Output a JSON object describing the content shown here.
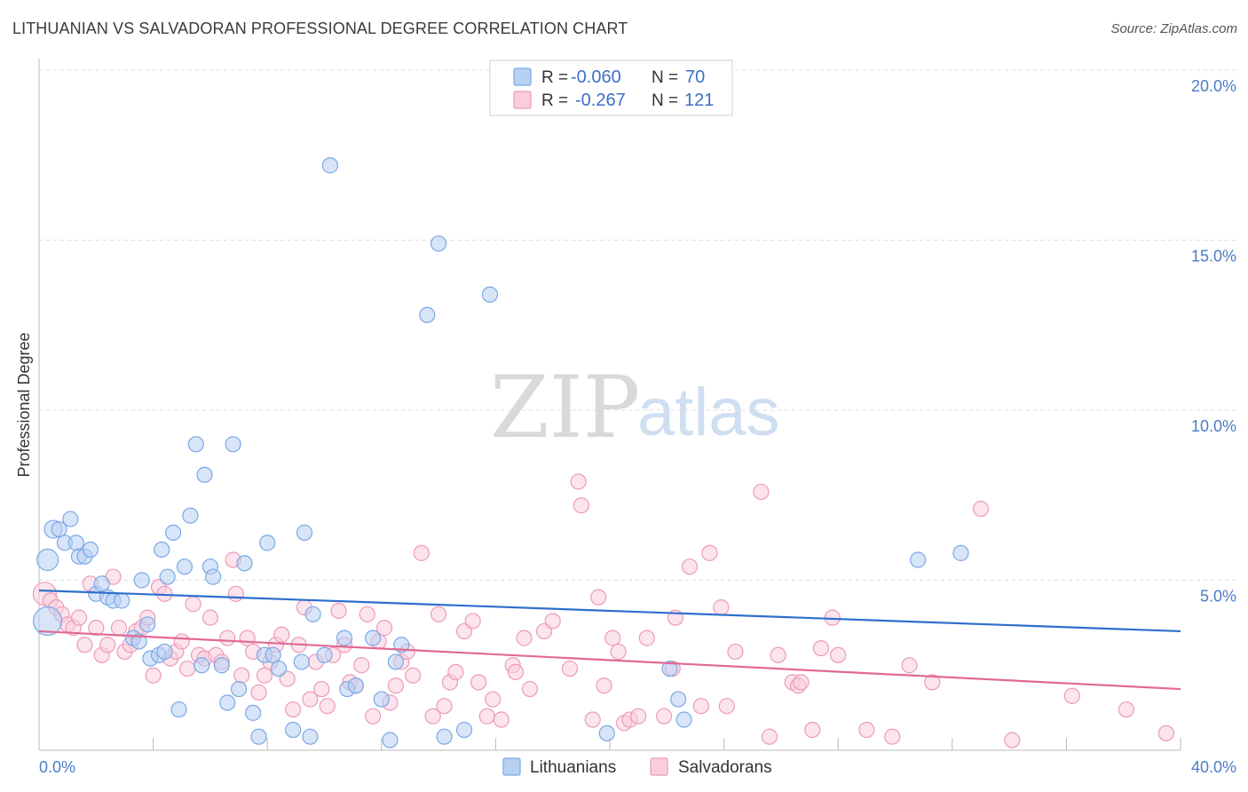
{
  "title": "LITHUANIAN VS SALVADORAN PROFESSIONAL DEGREE CORRELATION CHART",
  "source": "Source: ZipAtlas.com",
  "watermark": {
    "zip": "ZIP",
    "atlas": "atlas"
  },
  "colors": {
    "lithuanians": "#7aa8e6",
    "lithuanians_fill": "#b8d0f2",
    "lithuanians_line": "#2f6fcc",
    "salvadorans": "#ee9ab8",
    "salvadorans_fill": "#f8cedd",
    "salvadorans_line": "#e06a94",
    "grid": "#dcdcdc",
    "tick_label": "#4a7cc7"
  },
  "legend": {
    "rows": [
      {
        "r_label": "R =",
        "r_value": "-0.060",
        "n_label": "N =",
        "n_value": "70"
      },
      {
        "r_label": "R =",
        "r_value": "-0.267",
        "n_label": "N =",
        "n_value": "121"
      }
    ]
  },
  "chart_data": {
    "type": "scatter",
    "title": "LITHUANIAN VS SALVADORAN PROFESSIONAL DEGREE CORRELATION CHART",
    "xlabel": "",
    "ylabel": "Professional Degree",
    "xlim": [
      0,
      40
    ],
    "ylim": [
      0,
      20
    ],
    "x_tick_labels": [
      "0.0%",
      "40.0%"
    ],
    "y_ticks": [
      5,
      10,
      15,
      20
    ],
    "y_tick_labels": [
      "5.0%",
      "10.0%",
      "15.0%",
      "20.0%"
    ],
    "grid": "horizontal dashed",
    "legend_position": "top-center",
    "series": [
      {
        "name": "Lithuanians",
        "r": -0.06,
        "n": 70,
        "trend": [
          [
            0,
            4.7
          ],
          [
            40,
            3.5
          ]
        ],
        "points": [
          [
            0.3,
            3.8
          ],
          [
            0.3,
            5.6
          ],
          [
            0.5,
            6.5
          ],
          [
            0.7,
            6.5
          ],
          [
            0.9,
            6.1
          ],
          [
            1.1,
            6.8
          ],
          [
            1.3,
            6.1
          ],
          [
            1.4,
            5.7
          ],
          [
            1.6,
            5.7
          ],
          [
            1.8,
            5.9
          ],
          [
            2.0,
            4.6
          ],
          [
            2.2,
            4.9
          ],
          [
            2.4,
            4.5
          ],
          [
            2.6,
            4.4
          ],
          [
            2.9,
            4.4
          ],
          [
            3.3,
            3.3
          ],
          [
            3.6,
            5.0
          ],
          [
            3.5,
            3.2
          ],
          [
            3.8,
            3.7
          ],
          [
            3.9,
            2.7
          ],
          [
            4.2,
            2.8
          ],
          [
            4.3,
            5.9
          ],
          [
            4.4,
            2.9
          ],
          [
            4.5,
            5.1
          ],
          [
            4.7,
            6.4
          ],
          [
            4.9,
            1.2
          ],
          [
            5.1,
            5.4
          ],
          [
            5.3,
            6.9
          ],
          [
            5.5,
            9.0
          ],
          [
            5.7,
            2.5
          ],
          [
            5.8,
            8.1
          ],
          [
            6.0,
            5.4
          ],
          [
            6.1,
            5.1
          ],
          [
            6.4,
            2.5
          ],
          [
            6.6,
            1.4
          ],
          [
            6.8,
            9.0
          ],
          [
            7.0,
            1.8
          ],
          [
            7.2,
            5.5
          ],
          [
            7.5,
            1.1
          ],
          [
            7.7,
            0.4
          ],
          [
            7.9,
            2.8
          ],
          [
            8.0,
            6.1
          ],
          [
            8.2,
            2.8
          ],
          [
            8.4,
            2.4
          ],
          [
            8.9,
            0.6
          ],
          [
            9.2,
            2.6
          ],
          [
            9.3,
            6.4
          ],
          [
            9.5,
            0.4
          ],
          [
            9.6,
            4.0
          ],
          [
            10.0,
            2.8
          ],
          [
            10.2,
            17.2
          ],
          [
            10.7,
            3.3
          ],
          [
            10.8,
            1.8
          ],
          [
            11.1,
            1.9
          ],
          [
            11.7,
            3.3
          ],
          [
            12.0,
            1.5
          ],
          [
            12.3,
            0.3
          ],
          [
            12.5,
            2.6
          ],
          [
            12.7,
            3.1
          ],
          [
            13.6,
            12.8
          ],
          [
            14.0,
            14.9
          ],
          [
            14.2,
            0.4
          ],
          [
            14.9,
            0.6
          ],
          [
            15.8,
            13.4
          ],
          [
            19.9,
            0.5
          ],
          [
            22.1,
            2.4
          ],
          [
            22.4,
            1.5
          ],
          [
            22.6,
            0.9
          ],
          [
            30.8,
            5.6
          ],
          [
            32.3,
            5.8
          ]
        ]
      },
      {
        "name": "Salvadorans",
        "r": -0.267,
        "n": 121,
        "trend": [
          [
            0,
            3.5
          ],
          [
            40,
            1.8
          ]
        ],
        "points": [
          [
            0.2,
            4.6
          ],
          [
            0.4,
            4.4
          ],
          [
            0.6,
            4.2
          ],
          [
            0.8,
            4.0
          ],
          [
            1.0,
            3.7
          ],
          [
            1.2,
            3.6
          ],
          [
            1.4,
            3.9
          ],
          [
            1.6,
            3.1
          ],
          [
            1.8,
            4.9
          ],
          [
            2.0,
            3.6
          ],
          [
            2.2,
            2.8
          ],
          [
            2.4,
            3.1
          ],
          [
            2.6,
            5.1
          ],
          [
            2.8,
            3.6
          ],
          [
            3.0,
            2.9
          ],
          [
            3.2,
            3.1
          ],
          [
            3.4,
            3.5
          ],
          [
            3.6,
            3.6
          ],
          [
            3.8,
            3.9
          ],
          [
            4.0,
            2.2
          ],
          [
            4.2,
            4.8
          ],
          [
            4.4,
            4.6
          ],
          [
            4.6,
            2.7
          ],
          [
            4.8,
            2.9
          ],
          [
            5.0,
            3.2
          ],
          [
            5.2,
            2.4
          ],
          [
            5.4,
            4.3
          ],
          [
            5.6,
            2.8
          ],
          [
            5.8,
            2.7
          ],
          [
            6.0,
            3.9
          ],
          [
            6.2,
            2.8
          ],
          [
            6.4,
            2.6
          ],
          [
            6.6,
            3.3
          ],
          [
            6.8,
            5.6
          ],
          [
            6.9,
            4.6
          ],
          [
            7.1,
            2.2
          ],
          [
            7.3,
            3.3
          ],
          [
            7.5,
            2.9
          ],
          [
            7.7,
            1.7
          ],
          [
            7.9,
            2.2
          ],
          [
            8.1,
            2.6
          ],
          [
            8.3,
            3.1
          ],
          [
            8.5,
            3.4
          ],
          [
            8.7,
            2.1
          ],
          [
            8.9,
            1.2
          ],
          [
            9.1,
            3.1
          ],
          [
            9.3,
            4.2
          ],
          [
            9.5,
            1.5
          ],
          [
            9.7,
            2.6
          ],
          [
            9.9,
            1.8
          ],
          [
            10.1,
            1.3
          ],
          [
            10.3,
            2.8
          ],
          [
            10.5,
            4.1
          ],
          [
            10.7,
            3.1
          ],
          [
            10.9,
            2.0
          ],
          [
            11.1,
            1.9
          ],
          [
            11.3,
            2.5
          ],
          [
            11.5,
            4.0
          ],
          [
            11.7,
            1.0
          ],
          [
            11.9,
            3.2
          ],
          [
            12.1,
            3.6
          ],
          [
            12.3,
            1.4
          ],
          [
            12.5,
            1.9
          ],
          [
            12.7,
            2.6
          ],
          [
            12.9,
            2.9
          ],
          [
            13.1,
            2.2
          ],
          [
            13.4,
            5.8
          ],
          [
            13.8,
            1.0
          ],
          [
            14.0,
            4.0
          ],
          [
            14.2,
            1.3
          ],
          [
            14.4,
            2.0
          ],
          [
            14.6,
            2.3
          ],
          [
            14.9,
            3.5
          ],
          [
            15.2,
            3.8
          ],
          [
            15.4,
            2.0
          ],
          [
            15.7,
            1.0
          ],
          [
            15.9,
            1.5
          ],
          [
            16.2,
            0.9
          ],
          [
            16.6,
            2.5
          ],
          [
            16.7,
            2.3
          ],
          [
            17.0,
            3.3
          ],
          [
            17.2,
            1.8
          ],
          [
            17.7,
            3.5
          ],
          [
            18.0,
            3.8
          ],
          [
            18.6,
            2.4
          ],
          [
            18.9,
            7.9
          ],
          [
            19.0,
            7.2
          ],
          [
            19.4,
            0.9
          ],
          [
            19.6,
            4.5
          ],
          [
            19.8,
            1.9
          ],
          [
            20.1,
            3.3
          ],
          [
            20.3,
            2.9
          ],
          [
            20.5,
            0.8
          ],
          [
            20.7,
            0.9
          ],
          [
            21.0,
            1.0
          ],
          [
            21.3,
            3.3
          ],
          [
            21.9,
            1.0
          ],
          [
            22.2,
            2.4
          ],
          [
            22.3,
            3.9
          ],
          [
            22.8,
            5.4
          ],
          [
            23.2,
            1.3
          ],
          [
            23.5,
            5.8
          ],
          [
            23.9,
            4.2
          ],
          [
            24.1,
            1.3
          ],
          [
            24.4,
            2.9
          ],
          [
            25.3,
            7.6
          ],
          [
            25.6,
            0.4
          ],
          [
            25.9,
            2.8
          ],
          [
            26.4,
            2.0
          ],
          [
            26.6,
            1.9
          ],
          [
            26.7,
            2.0
          ],
          [
            27.1,
            0.6
          ],
          [
            27.4,
            3.0
          ],
          [
            27.8,
            3.9
          ],
          [
            28.0,
            2.8
          ],
          [
            29.0,
            0.6
          ],
          [
            29.9,
            0.4
          ],
          [
            30.5,
            2.5
          ],
          [
            31.3,
            2.0
          ],
          [
            33.0,
            7.1
          ],
          [
            34.1,
            0.3
          ],
          [
            36.2,
            1.6
          ],
          [
            38.1,
            1.2
          ],
          [
            39.5,
            0.5
          ]
        ]
      }
    ]
  },
  "bottom_legend": {
    "lithuanians": "Lithuanians",
    "salvadorans": "Salvadorans"
  }
}
